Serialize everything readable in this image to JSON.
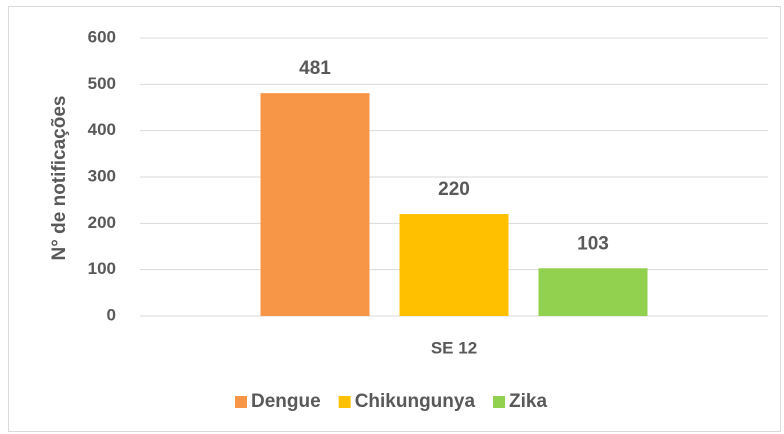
{
  "chart_data": {
    "type": "bar",
    "y_label": "N° de notificações",
    "categories": [
      "SE 12"
    ],
    "series": [
      {
        "name": "Dengue",
        "color": "#f79646",
        "values": [
          481
        ]
      },
      {
        "name": "Chikungunya",
        "color": "#ffc000",
        "values": [
          220
        ]
      },
      {
        "name": "Zika",
        "color": "#92d050",
        "values": [
          103
        ]
      }
    ],
    "ylim": [
      0,
      600
    ],
    "yticks": [
      0,
      100,
      200,
      300,
      400,
      500,
      600
    ],
    "grid": true,
    "legend": "bottom"
  }
}
